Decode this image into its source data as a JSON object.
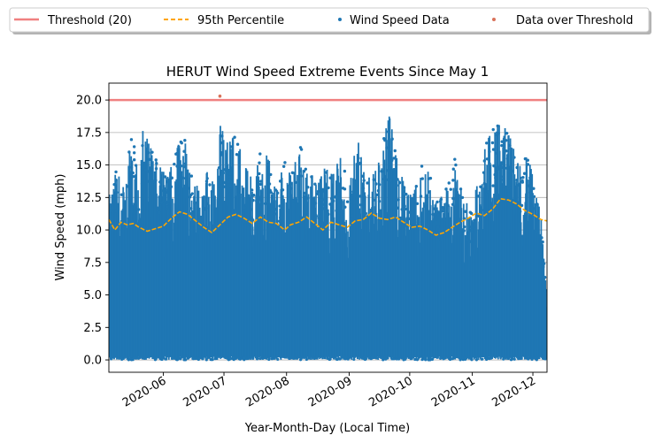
{
  "chart_data": {
    "type": "scatter",
    "title": "HERUT Wind Speed Extreme Events Since May 1",
    "xlabel": "Year-Month-Day (Local Time)",
    "ylabel": "Wind Speed (mph)",
    "x_range": [
      "2020-05-05",
      "2020-12-08"
    ],
    "ylim": [
      -0.95,
      21.3
    ],
    "y_ticks": [
      0.0,
      2.5,
      5.0,
      7.5,
      10.0,
      12.5,
      15.0,
      17.5,
      20.0
    ],
    "y_tick_labels": [
      "0.0",
      "2.5",
      "5.0",
      "7.5",
      "10.0",
      "12.5",
      "15.0",
      "17.5",
      "20.0"
    ],
    "x_ticks": [
      "2020-06-01",
      "2020-07-01",
      "2020-08-01",
      "2020-09-01",
      "2020-10-01",
      "2020-11-01",
      "2020-12-01"
    ],
    "x_tick_labels": [
      "2020-06",
      "2020-07",
      "2020-08",
      "2020-09",
      "2020-10",
      "2020-11",
      "2020-12"
    ],
    "grid": "horizontal",
    "legend": {
      "placement": "top, above plot",
      "entries": [
        {
          "label": "Threshold (20)",
          "kind": "line",
          "color": "#f08080"
        },
        {
          "label": "95th Percentile",
          "kind": "dashed-line",
          "color": "#ffa500"
        },
        {
          "label": "Wind Speed Data",
          "kind": "point",
          "color": "#1f77b4"
        },
        {
          "label": "Data over Threshold",
          "kind": "point",
          "color": "#d9725a"
        }
      ]
    },
    "threshold": {
      "name": "Threshold (20)",
      "value": 20,
      "color": "#f08080"
    },
    "percentile_95": {
      "name": "95th Percentile",
      "color": "#ffa500",
      "dates": [
        "2020-05-05",
        "2020-05-08",
        "2020-05-11",
        "2020-05-14",
        "2020-05-17",
        "2020-05-20",
        "2020-05-24",
        "2020-05-28",
        "2020-06-01",
        "2020-06-05",
        "2020-06-09",
        "2020-06-13",
        "2020-06-17",
        "2020-06-21",
        "2020-06-25",
        "2020-06-29",
        "2020-07-03",
        "2020-07-07",
        "2020-07-11",
        "2020-07-15",
        "2020-07-19",
        "2020-07-23",
        "2020-07-27",
        "2020-07-31",
        "2020-08-03",
        "2020-08-07",
        "2020-08-11",
        "2020-08-15",
        "2020-08-19",
        "2020-08-23",
        "2020-08-27",
        "2020-08-31",
        "2020-09-04",
        "2020-09-08",
        "2020-09-12",
        "2020-09-16",
        "2020-09-20",
        "2020-09-24",
        "2020-09-28",
        "2020-10-02",
        "2020-10-06",
        "2020-10-10",
        "2020-10-14",
        "2020-10-18",
        "2020-10-22",
        "2020-10-26",
        "2020-10-30",
        "2020-11-03",
        "2020-11-07",
        "2020-11-11",
        "2020-11-15",
        "2020-11-19",
        "2020-11-23",
        "2020-11-27",
        "2020-12-01",
        "2020-12-05",
        "2020-12-08"
      ],
      "values": [
        10.8,
        10.0,
        10.6,
        10.4,
        10.5,
        10.2,
        9.9,
        10.1,
        10.3,
        10.9,
        11.4,
        11.2,
        10.7,
        10.2,
        9.8,
        10.4,
        11.0,
        11.2,
        10.9,
        10.5,
        11.0,
        10.6,
        10.5,
        10.0,
        10.4,
        10.6,
        11.0,
        10.5,
        10.0,
        10.6,
        10.4,
        10.2,
        10.7,
        10.8,
        11.3,
        10.9,
        10.8,
        11.0,
        10.6,
        10.2,
        10.3,
        10.0,
        9.6,
        9.8,
        10.2,
        10.6,
        10.9,
        11.3,
        11.1,
        11.6,
        12.4,
        12.3,
        12.0,
        11.5,
        11.2,
        10.8,
        10.7
      ]
    },
    "wind_speed_envelope": {
      "name": "Wind Speed Data",
      "color": "#1f77b4",
      "dates": [
        "2020-05-05",
        "2020-05-09",
        "2020-05-13",
        "2020-05-16",
        "2020-05-19",
        "2020-05-22",
        "2020-05-26",
        "2020-05-30",
        "2020-06-03",
        "2020-06-07",
        "2020-06-11",
        "2020-06-15",
        "2020-06-19",
        "2020-06-23",
        "2020-06-27",
        "2020-06-29",
        "2020-07-03",
        "2020-07-07",
        "2020-07-11",
        "2020-07-15",
        "2020-07-19",
        "2020-07-23",
        "2020-07-27",
        "2020-07-31",
        "2020-08-04",
        "2020-08-08",
        "2020-08-12",
        "2020-08-16",
        "2020-08-20",
        "2020-08-24",
        "2020-08-28",
        "2020-09-01",
        "2020-09-05",
        "2020-09-09",
        "2020-09-13",
        "2020-09-17",
        "2020-09-21",
        "2020-09-25",
        "2020-09-29",
        "2020-10-03",
        "2020-10-07",
        "2020-10-11",
        "2020-10-15",
        "2020-10-19",
        "2020-10-23",
        "2020-10-27",
        "2020-10-31",
        "2020-11-04",
        "2020-11-08",
        "2020-11-12",
        "2020-11-16",
        "2020-11-20",
        "2020-11-24",
        "2020-11-28",
        "2020-12-02",
        "2020-12-05",
        "2020-12-08"
      ],
      "upper": [
        12.6,
        14.9,
        13.2,
        18.7,
        14.5,
        17.8,
        16.2,
        15.0,
        14.0,
        15.9,
        17.7,
        14.2,
        13.0,
        14.6,
        13.2,
        18.1,
        16.6,
        17.4,
        15.0,
        13.9,
        16.2,
        15.6,
        13.0,
        15.3,
        14.6,
        16.5,
        14.9,
        13.3,
        14.8,
        14.2,
        15.9,
        13.0,
        17.3,
        13.8,
        14.3,
        16.5,
        18.8,
        15.4,
        13.0,
        12.8,
        15.1,
        14.3,
        12.1,
        13.2,
        15.7,
        12.8,
        11.5,
        13.8,
        16.8,
        17.9,
        18.2,
        17.0,
        14.9,
        16.7,
        13.1,
        11.2,
        5.1
      ],
      "lower": [
        0.0,
        0.0,
        0.0,
        0.0,
        0.0,
        0.0,
        0.0,
        0.0,
        0.0,
        0.0,
        0.0,
        0.0,
        0.0,
        0.0,
        0.0,
        0.0,
        0.0,
        0.0,
        0.0,
        0.0,
        0.0,
        0.0,
        0.0,
        0.0,
        0.0,
        0.0,
        0.0,
        0.0,
        0.0,
        0.0,
        0.0,
        0.0,
        0.0,
        0.0,
        0.0,
        0.0,
        0.0,
        0.0,
        0.0,
        0.0,
        0.0,
        0.0,
        0.0,
        0.0,
        0.0,
        0.0,
        0.0,
        0.0,
        0.0,
        0.0,
        0.0,
        0.0,
        0.0,
        0.0,
        0.0,
        0.0,
        0.0
      ]
    },
    "over_threshold_points": [
      {
        "date": "2020-06-29",
        "value": 20.3,
        "color": "#d9725a"
      }
    ]
  }
}
